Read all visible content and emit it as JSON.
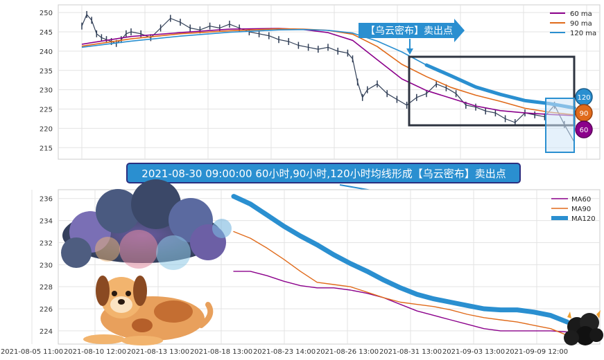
{
  "chart_data": [
    {
      "type": "line",
      "subtype": "candlestick_with_moving_averages",
      "y_ticks": [
        215,
        220,
        225,
        230,
        235,
        240,
        245,
        250
      ],
      "ylim": [
        212,
        252
      ],
      "x_range": [
        0,
        100
      ],
      "grid": true,
      "legend_position": "top-right",
      "series": [
        {
          "name": "60 ma",
          "color": "#8b008b",
          "x": [
            0,
            10,
            20,
            30,
            40,
            45,
            50,
            55,
            60,
            65,
            70,
            75,
            80,
            85,
            90,
            95,
            100
          ],
          "values": [
            241.8,
            243.8,
            244.8,
            245.7,
            245.9,
            245.6,
            244.8,
            242.8,
            237.8,
            232.8,
            229.8,
            227.8,
            225.8,
            224.6,
            224.0,
            223.6,
            223.3
          ]
        },
        {
          "name": "90 ma",
          "color": "#e06a1a",
          "x": [
            0,
            10,
            20,
            30,
            40,
            45,
            50,
            55,
            60,
            65,
            70,
            75,
            80,
            85,
            90,
            95,
            100
          ],
          "values": [
            241.3,
            243.2,
            244.5,
            245.3,
            245.8,
            245.7,
            245.4,
            244.4,
            241.2,
            236.6,
            233.4,
            230.6,
            228.6,
            227.0,
            225.2,
            224.2,
            223.5
          ]
        },
        {
          "name": "120 ma",
          "color": "#2a8fd0",
          "x": [
            0,
            10,
            20,
            30,
            40,
            45,
            50,
            55,
            60,
            65,
            70,
            75,
            80,
            85,
            90,
            95,
            100
          ],
          "values": [
            241.0,
            242.6,
            243.9,
            244.9,
            245.5,
            245.6,
            245.4,
            244.7,
            242.6,
            239.8,
            236.4,
            233.6,
            230.7,
            228.8,
            227.2,
            226.4,
            225.3
          ]
        },
        {
          "name": "price",
          "color": "#2f3d55",
          "x": [
            0,
            1,
            2,
            3,
            4,
            5,
            6,
            7,
            8,
            9,
            10,
            12,
            14,
            16,
            18,
            20,
            22,
            24,
            26,
            28,
            30,
            32,
            34,
            36,
            38,
            40,
            42,
            44,
            46,
            48,
            50,
            52,
            54,
            55,
            56,
            57,
            58,
            60,
            62,
            64,
            66,
            68,
            70,
            72,
            74,
            76,
            78,
            80,
            82,
            84,
            86,
            88,
            90,
            92,
            94,
            96,
            98,
            100
          ],
          "values": [
            246.5,
            249.5,
            248.0,
            244.5,
            243.5,
            243.0,
            242.5,
            242.0,
            243.0,
            244.5,
            245.0,
            244.5,
            243.5,
            246.0,
            248.5,
            247.5,
            246.0,
            245.5,
            246.5,
            246.0,
            247.0,
            246.0,
            245.0,
            244.5,
            244.0,
            243.0,
            242.5,
            241.5,
            241.0,
            240.5,
            241.0,
            240.0,
            239.5,
            238.0,
            232.0,
            228.0,
            230.0,
            231.5,
            229.0,
            227.5,
            226.0,
            228.0,
            229.0,
            231.5,
            230.5,
            229.0,
            226.0,
            225.5,
            224.5,
            224.0,
            222.5,
            221.5,
            224.0,
            223.5,
            223.0,
            226.0,
            221.0,
            216.5
          ]
        }
      ],
      "end_badges": [
        "120",
        "90",
        "60"
      ],
      "annotation": "【乌云密布】卖出点"
    },
    {
      "type": "line",
      "x_tick_labels": [
        "2021-08-05 11:00",
        "2021-08-10 12:00",
        "2021-08-13 13:00",
        "2021-08-18 13:00",
        "2021-08-23 14:00",
        "2021-08-26 13:00",
        "2021-08-31 13:00",
        "2021-09-03 13:00",
        "2021-09-09 12:00"
      ],
      "y_ticks": [
        224,
        226,
        228,
        230,
        232,
        234,
        236
      ],
      "ylim": [
        222.8,
        236.8
      ],
      "grid": true,
      "legend_position": "top-right",
      "series": [
        {
          "name": "MA60",
          "color": "#8b008b",
          "x": [
            0,
            5,
            10,
            15,
            20,
            25,
            30,
            35,
            40,
            45,
            50,
            55,
            60,
            65,
            70,
            75,
            80,
            85,
            90,
            95,
            100
          ],
          "values": [
            229.4,
            229.4,
            229.0,
            228.5,
            228.1,
            227.9,
            227.9,
            227.7,
            227.4,
            227.0,
            226.4,
            225.8,
            225.4,
            225.0,
            224.6,
            224.2,
            224.0,
            224.0,
            224.0,
            224.0,
            223.9
          ]
        },
        {
          "name": "MA90",
          "color": "#e06a1a",
          "x": [
            0,
            5,
            10,
            15,
            20,
            25,
            30,
            35,
            40,
            45,
            50,
            55,
            60,
            65,
            70,
            75,
            80,
            85,
            90,
            95,
            100
          ],
          "values": [
            233.0,
            232.4,
            231.5,
            230.5,
            229.4,
            228.4,
            228.2,
            228.0,
            227.5,
            227.0,
            226.6,
            226.4,
            226.2,
            225.9,
            225.5,
            225.2,
            225.0,
            224.8,
            224.5,
            224.2,
            223.6
          ]
        },
        {
          "name": "MA120",
          "color": "#2a8fd0",
          "x": [
            0,
            5,
            10,
            15,
            20,
            25,
            30,
            35,
            40,
            45,
            50,
            55,
            60,
            65,
            70,
            75,
            80,
            85,
            90,
            95,
            100
          ],
          "values": [
            236.2,
            235.5,
            234.5,
            233.5,
            232.6,
            231.8,
            230.9,
            230.1,
            229.4,
            228.6,
            227.9,
            227.3,
            226.9,
            226.6,
            226.3,
            226.0,
            225.9,
            225.9,
            225.7,
            225.4,
            224.8
          ]
        }
      ]
    }
  ],
  "banner": "2021-08-30 09:00:00 60小时,90小时,120小时均线形成【乌云密布】卖出点"
}
